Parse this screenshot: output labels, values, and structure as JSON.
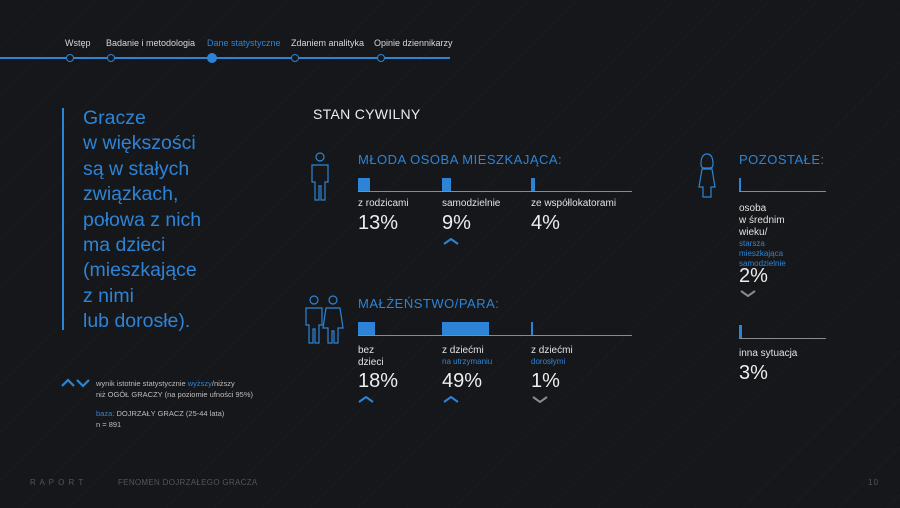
{
  "nav": {
    "items": [
      {
        "label": "Wstęp"
      },
      {
        "label": "Badanie i metodologia"
      },
      {
        "label": "Dane statystyczne"
      },
      {
        "label": "Zdaniem analityka"
      },
      {
        "label": "Opinie dziennikarzy"
      }
    ]
  },
  "quote": {
    "lines": [
      "Gracze",
      "w większości",
      "są w stałych",
      "związkach,",
      "połowa z nich",
      "ma dzieci",
      "(mieszkające",
      "z nimi",
      "lub dorosłe)."
    ]
  },
  "section_title": "STAN CYWILNY",
  "young": {
    "heading": "MŁODA OSOBA MIESZKAJĄCA:",
    "items": [
      {
        "label": "z rodzicami",
        "value": "13%",
        "fraction": 0.13
      },
      {
        "label": "samodzielnie",
        "value": "9%",
        "fraction": 0.09
      },
      {
        "label": "ze współlokatorami",
        "value": "4%",
        "fraction": 0.04
      }
    ]
  },
  "married": {
    "heading": "MAŁŻEŃSTWO/PARA:",
    "items": [
      {
        "label": "bez",
        "label2": "dzieci",
        "value": "18%",
        "fraction": 0.18
      },
      {
        "label": "z dziećmi",
        "sub": "na utrzymaniu",
        "value": "49%",
        "fraction": 0.49
      },
      {
        "label": "z dziećmi",
        "sub": "dorosłymi",
        "value": "1%",
        "fraction": 0.01
      }
    ]
  },
  "other": {
    "heading": "POZOSTAŁE:",
    "item1": {
      "l1": "osoba",
      "l2": "w średnim",
      "l3": "wieku/",
      "s1": "starsza",
      "s2": "mieszkająca",
      "s3": "samodzielnie",
      "value": "2%",
      "fraction": 0.02
    },
    "item2": {
      "label": "inna sytuacja",
      "value": "3%",
      "fraction": 0.03
    }
  },
  "legend": {
    "prefix": "wynik istotnie statystycznie ",
    "higher": "wyższy",
    "slash_lower": "/niższy",
    "line2": "niż OGÓŁ GRACZY (na poziomie ufności 95%)",
    "base_label": "baza:",
    "base_text": " DOJRZAŁY GRACZ (25-44 lata)",
    "n": "n = 891"
  },
  "footer": {
    "raport": "R A P O R T",
    "title": "FENOMEN DOJRZAŁEGO GRACZA",
    "page": "10"
  },
  "colors": {
    "accent": "#2d84d6",
    "background": "#16171a",
    "muted": "#8a8a8a"
  }
}
